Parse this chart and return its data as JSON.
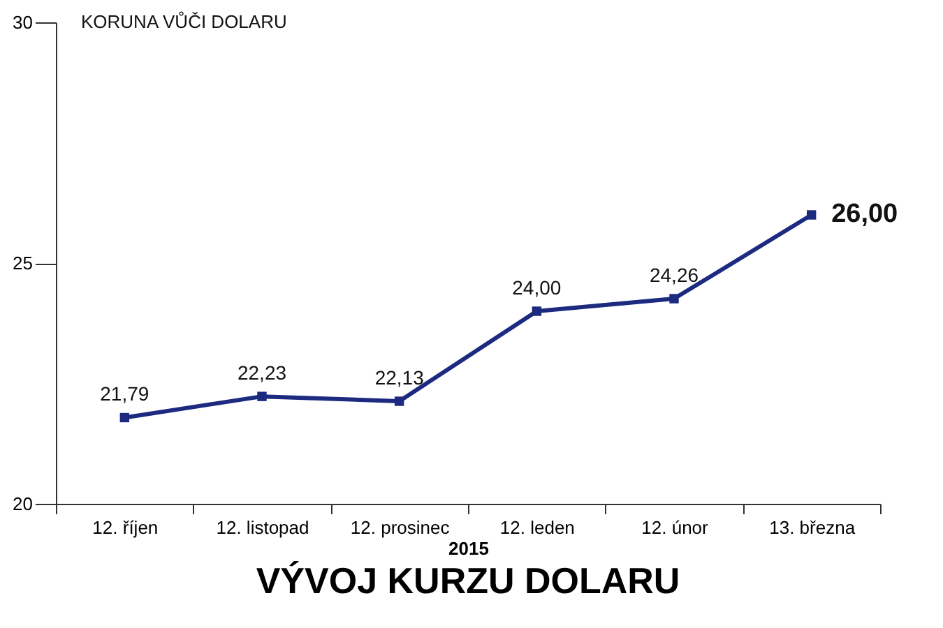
{
  "chart_data": {
    "type": "line",
    "title": "VÝVOJ KURZU DOLARU",
    "ylabel": "KORUNA VŮČI DOLARU",
    "xlabel": "2015",
    "categories": [
      "12. říjen",
      "12. listopad",
      "12. prosinec",
      "12. leden",
      "12. únor",
      "13. března"
    ],
    "series": [
      {
        "color": "#1c2a80",
        "values": [
          21.79,
          22.23,
          22.13,
          24.0,
          24.26,
          26.0
        ],
        "value_labels": [
          "21,79",
          "22,23",
          "22,13",
          "24,00",
          "24,26",
          "26,00"
        ]
      }
    ],
    "ylim": [
      20,
      30
    ],
    "yticks": [
      20,
      25,
      30
    ],
    "marker": "square",
    "line_style": "solid",
    "grid": false,
    "legend": false
  }
}
